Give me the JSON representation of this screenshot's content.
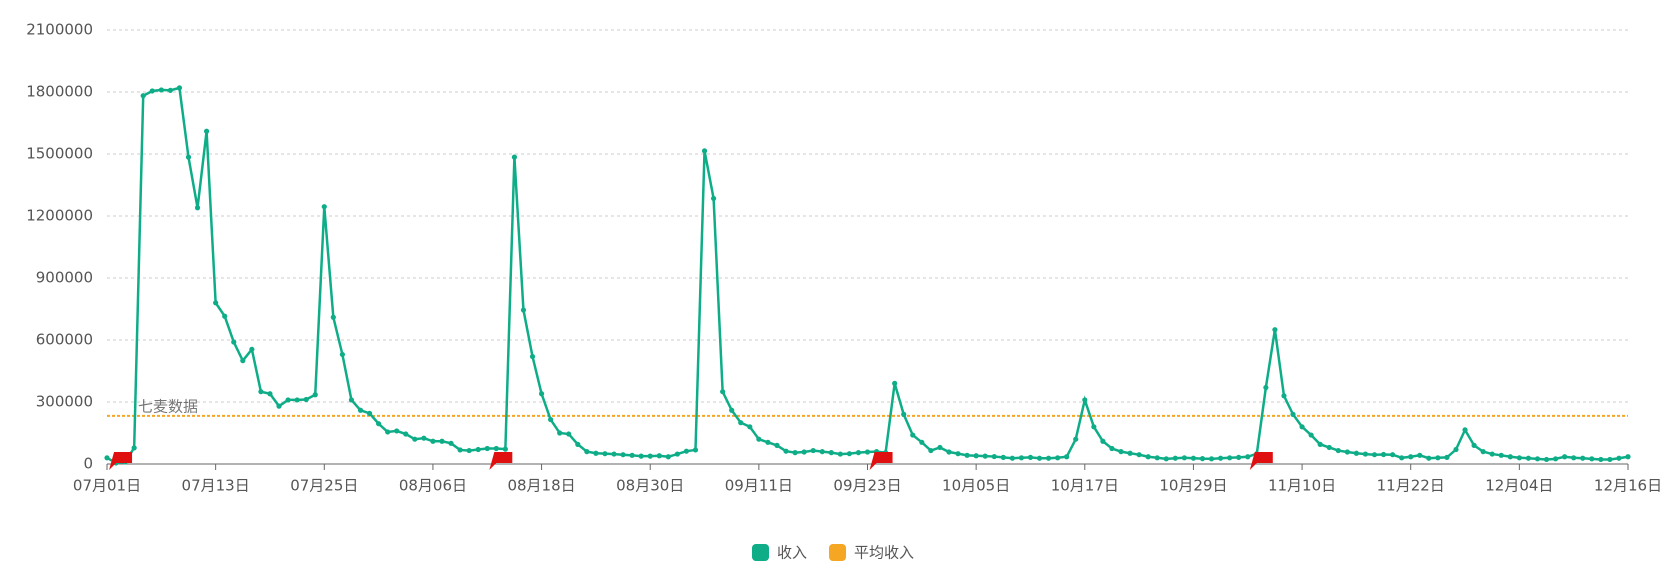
{
  "chart_data": {
    "type": "line",
    "watermark": "七麦数据",
    "categories": [
      "07月01日",
      null,
      null,
      null,
      null,
      null,
      null,
      null,
      null,
      null,
      null,
      null,
      "07月13日",
      null,
      null,
      null,
      null,
      null,
      null,
      null,
      null,
      null,
      null,
      null,
      "07月25日",
      null,
      null,
      null,
      null,
      null,
      null,
      null,
      null,
      null,
      null,
      null,
      "08月06日",
      null,
      null,
      null,
      null,
      null,
      null,
      null,
      null,
      null,
      null,
      null,
      "08月18日",
      null,
      null,
      null,
      null,
      null,
      null,
      null,
      null,
      null,
      null,
      null,
      "08月30日",
      null,
      null,
      null,
      null,
      null,
      null,
      null,
      null,
      null,
      null,
      null,
      "09月11日",
      null,
      null,
      null,
      null,
      null,
      null,
      null,
      null,
      null,
      null,
      null,
      "09月23日",
      null,
      null,
      null,
      null,
      null,
      null,
      null,
      null,
      null,
      null,
      null,
      "10月05日",
      null,
      null,
      null,
      null,
      null,
      null,
      null,
      null,
      null,
      null,
      null,
      "10月17日",
      null,
      null,
      null,
      null,
      null,
      null,
      null,
      null,
      null,
      null,
      null,
      "10月29日",
      null,
      null,
      null,
      null,
      null,
      null,
      null,
      null,
      null,
      null,
      null,
      "11月10日",
      null,
      null,
      null,
      null,
      null,
      null,
      null,
      null,
      null,
      null,
      null,
      "11月22日",
      null,
      null,
      null,
      null,
      null,
      null,
      null,
      null,
      null,
      null,
      null,
      "12月04日",
      null,
      null,
      null,
      null,
      null,
      null,
      null,
      null,
      null,
      null,
      null,
      "12月16日"
    ],
    "series": [
      {
        "name": "收入",
        "color": "#0ead88",
        "values": [
          30000,
          5000,
          10000,
          78000,
          1782000,
          1805000,
          1810000,
          1808000,
          1820000,
          1485000,
          1240000,
          1610000,
          780000,
          715000,
          590000,
          500000,
          555000,
          350000,
          340000,
          280000,
          310000,
          310000,
          312000,
          335000,
          1245000,
          710000,
          530000,
          310000,
          260000,
          245000,
          195000,
          155000,
          160000,
          145000,
          120000,
          125000,
          110000,
          110000,
          100000,
          68000,
          65000,
          70000,
          75000,
          75000,
          72000,
          1485000,
          745000,
          520000,
          340000,
          215000,
          150000,
          145000,
          95000,
          60000,
          52000,
          50000,
          48000,
          45000,
          42000,
          38000,
          38000,
          40000,
          35000,
          48000,
          62000,
          68000,
          1515000,
          1285000,
          350000,
          260000,
          200000,
          180000,
          120000,
          105000,
          90000,
          62000,
          55000,
          58000,
          65000,
          60000,
          55000,
          48000,
          50000,
          55000,
          58000,
          60000,
          55000,
          390000,
          240000,
          140000,
          105000,
          65000,
          80000,
          58000,
          50000,
          42000,
          40000,
          38000,
          36000,
          32000,
          28000,
          30000,
          32000,
          28000,
          28000,
          30000,
          35000,
          120000,
          310000,
          180000,
          110000,
          75000,
          60000,
          52000,
          45000,
          35000,
          30000,
          25000,
          28000,
          30000,
          28000,
          26000,
          25000,
          28000,
          30000,
          32000,
          35000,
          50000,
          370000,
          650000,
          330000,
          240000,
          180000,
          140000,
          95000,
          80000,
          65000,
          58000,
          52000,
          48000,
          45000,
          46000,
          45000,
          30000,
          35000,
          42000,
          28000,
          30000,
          32000,
          70000,
          165000,
          90000,
          60000,
          48000,
          42000,
          35000,
          30000,
          28000,
          25000,
          22000,
          25000,
          35000,
          30000,
          28000,
          25000,
          22000,
          22000,
          28000,
          35000
        ]
      }
    ],
    "reference_line": {
      "name": "平均收入",
      "color": "#f5a623",
      "value": 233000
    },
    "event_markers": [
      1,
      43,
      85,
      127
    ],
    "marker_color": "#e01010",
    "ylim": [
      0,
      2100000
    ],
    "yticks": [
      0,
      300000,
      600000,
      900000,
      1200000,
      1500000,
      1800000,
      2100000
    ],
    "grid": true,
    "legend": "bottom"
  }
}
